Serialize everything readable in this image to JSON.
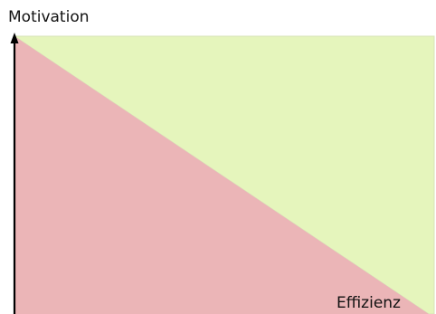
{
  "diagram": {
    "y_axis_label": "Motivation",
    "x_axis_label": "Effizienz",
    "colors": {
      "lower_region": "#ebb5b7",
      "upper_region": "#e5f5bc",
      "axis": "#000000",
      "upper_region_edge": "#d8e4b8"
    }
  }
}
